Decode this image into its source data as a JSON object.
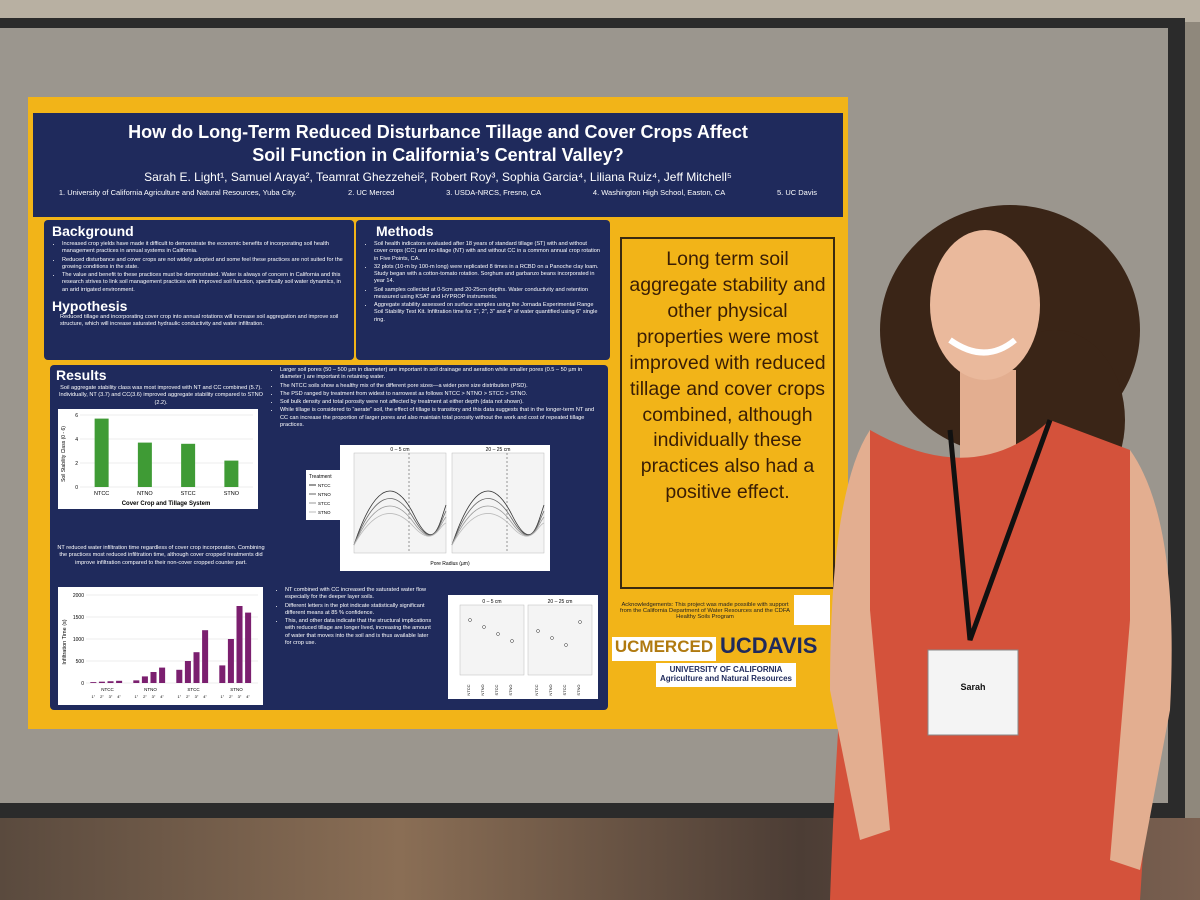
{
  "poster": {
    "title": [
      "How do Long-Term Reduced Disturbance Tillage and Cover Crops Affect",
      "Soil Function in California’s Central Valley?"
    ],
    "authors": "Sarah E. Light¹, Samuel Araya², Teamrat Ghezzehei², Robert Roy³, Sophia Garcia⁴, Liliana Ruiz⁴, Jeff Mitchell⁵",
    "affiliations": [
      "1. University of California Agriculture and Natural Resources, Yuba City.",
      "2. UC Merced",
      "3. USDA-NRCS, Fresno, CA",
      "4. Washington High School, Easton, CA",
      "5. UC Davis"
    ],
    "background": {
      "heading": "Background",
      "bullets": [
        "Increased crop yields have made it difficult to demonstrate the economic benefits of incorporating soil health management practices in annual systems in California.",
        "Reduced disturbance and cover crops are not widely adopted and some feel these practices are not suited for the growing conditions in the state.",
        "The value and benefit to these practices must be demonstrated. Water is always of concern in California and this research strives to link soil management practices with improved soil function, specifically soil water dynamics, in an arid irrigated environment."
      ]
    },
    "hypothesis": {
      "heading": "Hypothesis",
      "text": "Reduced tillage and incorporating cover crop into annual rotations will increase soil aggregation and improve soil structure, which will increase saturated hydraulic conductivity and water infiltration."
    },
    "methods": {
      "heading": "Methods",
      "bullets": [
        "Soil health indicators evaluated after 18 years of standard tillage (ST) with and without cover crops (CC) and no-tillage (NT) with and without CC in a common annual crop rotation in Five Points, CA.",
        "32 plots (10-m by 100-m long) were replicated 8 times in a RCBD on a Panoche clay loam. Study began with a cotton-tomato rotation. Sorghum and garbanzo beans incorporated in year 14.",
        "Soil samples collected at 0-5cm and 20-25cm depths. Water conductivity and retention measured using KSAT and HYPROP instruments.",
        "Aggregate stability assessed on surface samples using the Jornada Experimental Range Soil Stability Test Kit. Infiltration time for 1\", 2\", 3\" and 4\" of water quantified using 6\" single ring."
      ]
    },
    "results": {
      "heading": "Results",
      "aggregate_text": "Soil aggregate stability class was most improved with NT and CC combined (5.7). Individually, NT (3.7) and CC(3.6) improved aggregate stability compared to STNO (2.2).",
      "infiltration_text": "NT reduced water infiltration time regardless of cover crop incorporation. Combining the practices most reduced infiltration time, although cover cropped treatments did improve infiltration compared to their non-cover cropped counter part.",
      "pore_bullets": [
        "Larger soil pores (50 – 500 µm in diameter) are important in soil drainage and aeration while smaller pores (0.5 – 50 µm in diameter ) are important in retaining water.",
        "The NTCC soils show a healthy mix of the different pore sizes—a wider pore size distribution (PSD).",
        "The PSD ranged by treatment from widest to narrowest as follows NTCC > NTNO > STCC > STNO.",
        "Soil bulk density and total porosity were not affected by treatment at either depth (data not shown).",
        "While tillage is considered to “aerate” soil, the effect of tillage is transitory and this data suggests that in the longer-term NT and CC can increase the proportion of larger pores and also maintain total porosity without the work and cost of repeated tillage practices."
      ],
      "ksat_bullets": [
        "NT combined with CC increased the saturated water flow especially for the deeper layer soils.",
        "Different letters in the plot indicate statistically significant different means at 85 % confidence.",
        "This, and other data indicate that the structural implications with reduced tillage are longer lived, increasing the amount of water that moves into the soil and is thus available later for crop use."
      ]
    },
    "callout": "Long term soil aggregate stability and other physical properties were most improved with reduced tillage and cover crops combined, although individually these practices also had a positive effect.",
    "acknowledgements": "Acknowledgements: This project was made possible with support from the California Department of Water Resources and the CDFA Healthy Soils Program",
    "logos": [
      "UCMERCED",
      "UCDAVIS",
      "UNIVERSITY OF CALIFORNIA",
      "Agriculture and Natural Resources"
    ],
    "pore_panels": [
      "0 – 5 cm",
      "20 – 25 cm"
    ],
    "pore_xlabel": "Pore Radius (µm)",
    "legend_title": "Treatment",
    "treatments": [
      "NTCC",
      "NTNO",
      "STCC",
      "STNO"
    ]
  },
  "chart_data": [
    {
      "type": "bar",
      "categories": [
        "NTCC",
        "NTNO",
        "STCC",
        "STNO"
      ],
      "values": [
        5.7,
        3.7,
        3.6,
        2.2
      ],
      "color": "#3f9b35",
      "ylim": [
        0,
        6
      ],
      "yticks": [
        0,
        2,
        4,
        6
      ],
      "ylabel": "Soil Stability Class (0 - 6)",
      "xlabel": "Cover Crop and Tillage System"
    },
    {
      "type": "grouped-bar",
      "categories": [
        "NTCC",
        "NTNO",
        "STCC",
        "STNO"
      ],
      "subcategories": [
        "1\"",
        "2\"",
        "3\"",
        "4\""
      ],
      "values": [
        [
          20,
          30,
          40,
          50
        ],
        [
          60,
          150,
          250,
          350
        ],
        [
          300,
          500,
          700,
          1200
        ],
        [
          400,
          1000,
          1750,
          1600
        ]
      ],
      "color": "#7b1f6f",
      "ylim": [
        0,
        2000
      ],
      "yticks": [
        0,
        500,
        1000,
        1500,
        2000
      ],
      "ylabel": "Infiltration Time (s)"
    }
  ],
  "badge": {
    "name": "Sarah"
  }
}
